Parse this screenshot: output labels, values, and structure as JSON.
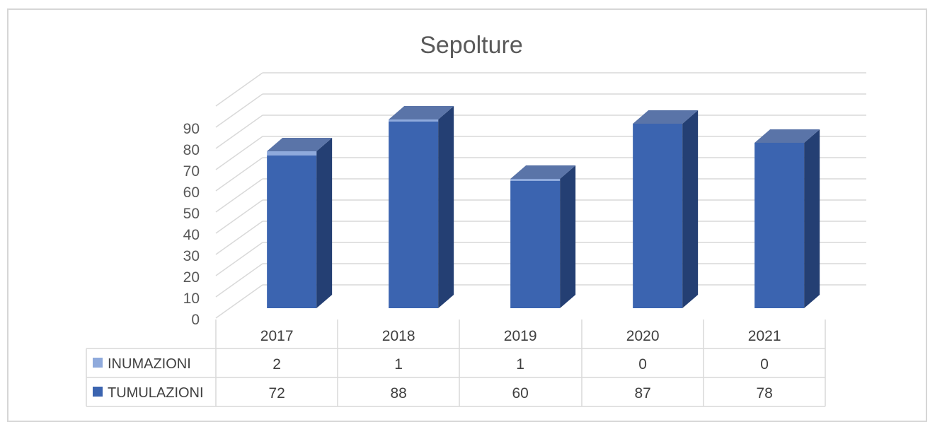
{
  "chart_data": {
    "type": "bar",
    "title": "Sepolture",
    "categories": [
      "2017",
      "2018",
      "2019",
      "2020",
      "2021"
    ],
    "series": [
      {
        "name": "INUMAZIONI",
        "values": [
          2,
          1,
          1,
          0,
          0
        ],
        "color": "#8faadc"
      },
      {
        "name": "TUMULAZIONI",
        "values": [
          72,
          88,
          60,
          87,
          78
        ],
        "color": "#3b64b0"
      }
    ],
    "stacked": true,
    "ylim": [
      0,
      90
    ],
    "yticks": [
      "0",
      "10",
      "20",
      "30",
      "40",
      "50",
      "60",
      "70",
      "80",
      "90"
    ],
    "grid": true,
    "legend": "data-table",
    "data_table": {
      "rows": [
        {
          "label": "INUMAZIONI",
          "cells": [
            "2",
            "1",
            "1",
            "0",
            "0"
          ]
        },
        {
          "label": "TUMULAZIONI",
          "cells": [
            "72",
            "88",
            "60",
            "87",
            "78"
          ]
        }
      ]
    }
  }
}
